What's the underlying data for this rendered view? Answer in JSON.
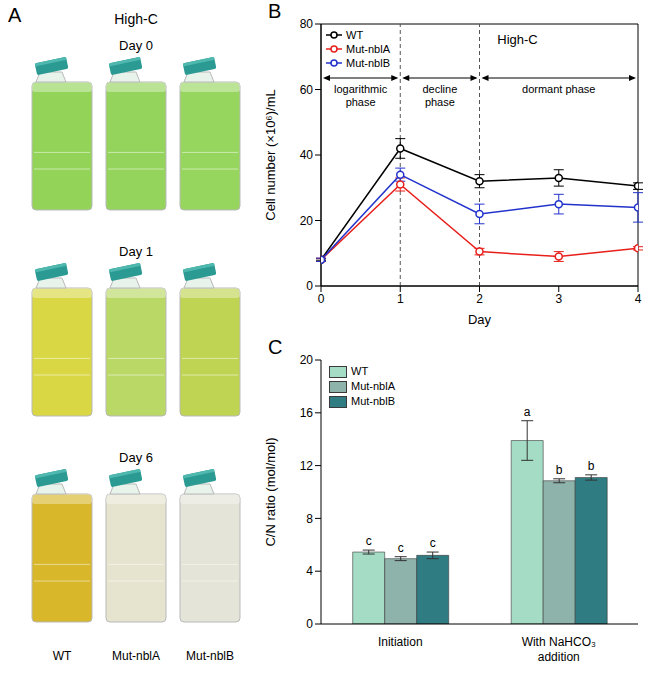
{
  "photo_panel": {
    "panel_label": "A",
    "title": "High-C",
    "columns": [
      "WT",
      "Mut-nblA",
      "Mut-nblB"
    ],
    "rows": [
      {
        "label": "Day 0",
        "colors": [
          "#93d458",
          "#95d45c",
          "#97d65e"
        ]
      },
      {
        "label": "Day 1",
        "colors": [
          "#d9d743",
          "#b9d866",
          "#bfd452"
        ]
      },
      {
        "label": "Day 6",
        "colors": [
          "#d8b72a",
          "#e6e4cf",
          "#e4e4d8"
        ]
      }
    ]
  },
  "chart_data": [
    {
      "panel_label": "B",
      "type": "line",
      "title": "High-C",
      "x_label": "Day",
      "y_label": "Cell number (×10⁶)/mL",
      "x": [
        0,
        1,
        2,
        3,
        4
      ],
      "xlim": [
        0,
        4
      ],
      "xticks": [
        0,
        1,
        2,
        3,
        4
      ],
      "ylim": [
        0,
        80
      ],
      "yticks": [
        0,
        20,
        40,
        60,
        80
      ],
      "legend": "upper left",
      "series": [
        {
          "name": "WT",
          "color": "#000000",
          "marker": "open_circle",
          "values": [
            8,
            42,
            32,
            33,
            30.5
          ],
          "errors": [
            0.3,
            3,
            2,
            2.5,
            1
          ]
        },
        {
          "name": "Mut-nblA",
          "color": "#e8201c",
          "marker": "open_circle",
          "values": [
            8,
            31,
            10.5,
            9,
            11.5
          ],
          "errors": [
            0.5,
            2,
            1,
            1.5,
            0.5
          ]
        },
        {
          "name": "Mut-nblB",
          "color": "#2233cc",
          "marker": "open_circle",
          "values": [
            8,
            34,
            22,
            25,
            24
          ],
          "errors": [
            0.5,
            2,
            3,
            3,
            4.5
          ]
        }
      ],
      "phases": [
        {
          "label": "logarithmic phase",
          "start": 0,
          "end": 1
        },
        {
          "label": "decline phase",
          "start": 1,
          "end": 2
        },
        {
          "label": "dormant phase",
          "start": 2,
          "end": 4
        }
      ]
    },
    {
      "panel_label": "C",
      "type": "bar",
      "categories": [
        "Initiation",
        "With NaHCO₃ addition"
      ],
      "y_label": "C/N ratio (mol/mol)",
      "ylim": [
        0,
        20
      ],
      "yticks": [
        0,
        4,
        8,
        12,
        16,
        20
      ],
      "legend": "upper left",
      "series": [
        {
          "name": "WT",
          "color": "#a5dcc5",
          "values": [
            5.45,
            13.9
          ],
          "errors": [
            0.15,
            1.5
          ],
          "letters": [
            "c",
            "a"
          ]
        },
        {
          "name": "Mut-nblA",
          "color": "#8eb3ab",
          "values": [
            4.95,
            10.85
          ],
          "errors": [
            0.15,
            0.15
          ],
          "letters": [
            "c",
            "b"
          ]
        },
        {
          "name": "Mut-nblB",
          "color": "#2f7c82",
          "values": [
            5.2,
            11.1
          ],
          "errors": [
            0.25,
            0.2
          ],
          "letters": [
            "c",
            "b"
          ]
        }
      ]
    }
  ]
}
